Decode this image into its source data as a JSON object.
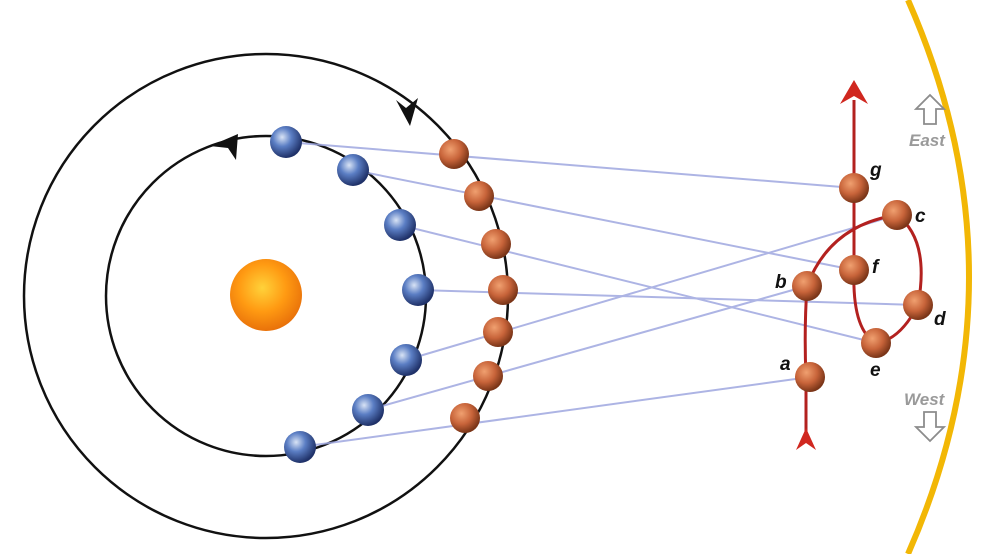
{
  "colors": {
    "sun": "#f08a10",
    "orbit": "#111111",
    "sight_line": "#9fa8e0",
    "mars_path": "#b3211f",
    "mars": "#c8643a",
    "earth": "#3b5aa0",
    "celestial_sphere": "#f2b705",
    "direction_arrow": "#8c8c8c"
  },
  "icons": {
    "orbit_direction": "arrowhead-icon",
    "east": "hollow-up-arrow-icon",
    "west": "hollow-down-arrow-icon"
  },
  "directions": {
    "east": "East",
    "west": "West"
  },
  "mars_labels": [
    "a",
    "b",
    "c",
    "d",
    "e",
    "f",
    "g"
  ]
}
